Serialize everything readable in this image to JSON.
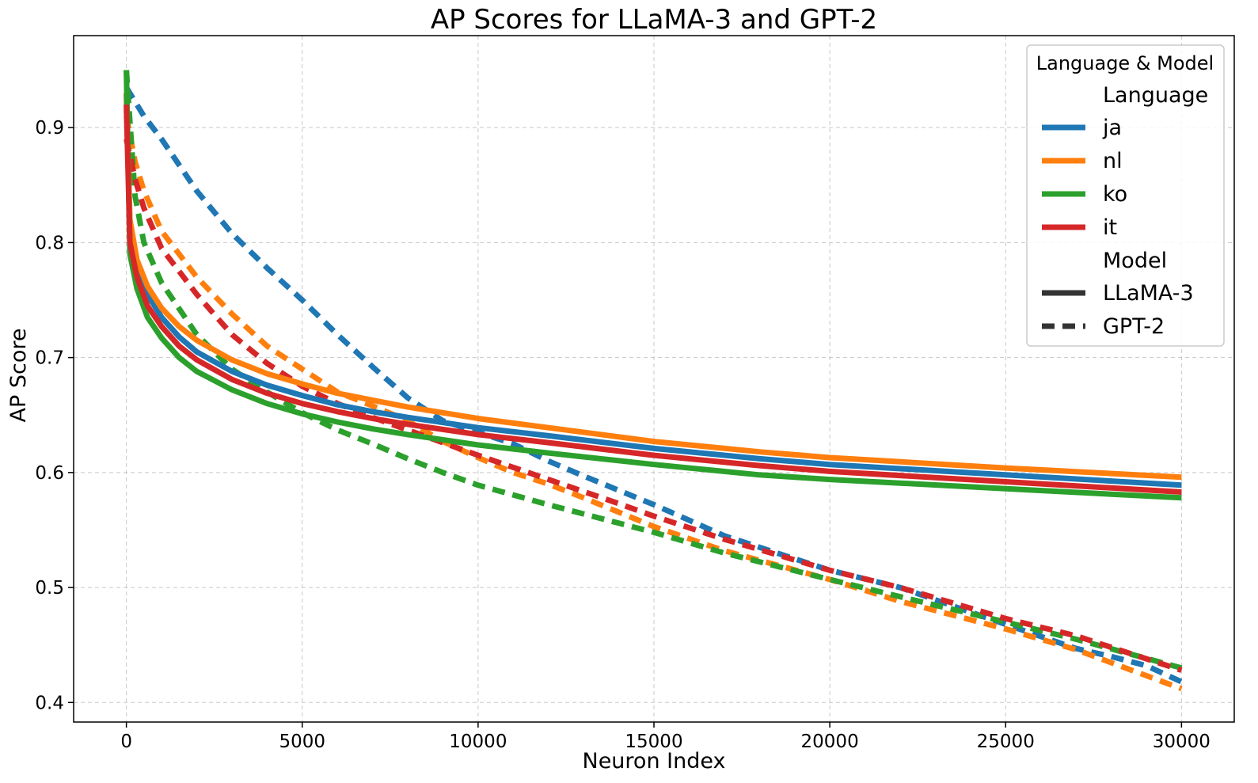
{
  "chart_data": {
    "type": "line",
    "title": "AP Scores for LLaMA-3 and GPT-2",
    "xlabel": "Neuron Index",
    "ylabel": "AP Score",
    "xlim": [
      -1500,
      31500
    ],
    "ylim": [
      0.383,
      0.98
    ],
    "xticks": [
      0,
      5000,
      10000,
      15000,
      20000,
      25000,
      30000
    ],
    "yticks": [
      0.4,
      0.5,
      0.6,
      0.7,
      0.8,
      0.9
    ],
    "xtick_labels": [
      "0",
      "5000",
      "10000",
      "15000",
      "20000",
      "25000",
      "30000"
    ],
    "ytick_labels": [
      "0.4",
      "0.5",
      "0.6",
      "0.7",
      "0.8",
      "0.9"
    ],
    "grid": true,
    "legend": {
      "placement": "top-right",
      "title": "Language & Model",
      "language_header": "Language",
      "model_header": "Model",
      "languages": [
        {
          "label": "ja",
          "color": "#1f77b4"
        },
        {
          "label": "nl",
          "color": "#ff7f0e"
        },
        {
          "label": "ko",
          "color": "#2ca02c"
        },
        {
          "label": "it",
          "color": "#d62728"
        }
      ],
      "models": [
        {
          "label": "LLaMA-3",
          "style": "solid"
        },
        {
          "label": "GPT-2",
          "style": "dashed"
        }
      ]
    },
    "series": [
      {
        "language": "ja",
        "model": "LLaMA-3",
        "color": "#1f77b4",
        "style": "solid",
        "x": [
          0,
          100,
          300,
          600,
          1000,
          1500,
          2000,
          3000,
          4000,
          5000,
          6000,
          7000,
          8000,
          10000,
          12000,
          15000,
          18000,
          20000,
          25000,
          30000
        ],
        "y": [
          0.93,
          0.81,
          0.78,
          0.755,
          0.735,
          0.718,
          0.705,
          0.688,
          0.676,
          0.667,
          0.659,
          0.653,
          0.648,
          0.639,
          0.632,
          0.621,
          0.612,
          0.607,
          0.598,
          0.589
        ]
      },
      {
        "language": "nl",
        "model": "LLaMA-3",
        "color": "#ff7f0e",
        "style": "solid",
        "x": [
          0,
          100,
          300,
          600,
          1000,
          1500,
          2000,
          3000,
          4000,
          5000,
          6000,
          7000,
          8000,
          10000,
          12000,
          15000,
          18000,
          20000,
          25000,
          30000
        ],
        "y": [
          0.93,
          0.82,
          0.785,
          0.762,
          0.743,
          0.727,
          0.715,
          0.698,
          0.686,
          0.677,
          0.669,
          0.663,
          0.657,
          0.647,
          0.639,
          0.627,
          0.618,
          0.613,
          0.604,
          0.596
        ]
      },
      {
        "language": "ko",
        "model": "LLaMA-3",
        "color": "#2ca02c",
        "style": "solid",
        "x": [
          0,
          100,
          300,
          600,
          1000,
          1500,
          2000,
          3000,
          4000,
          5000,
          6000,
          7000,
          8000,
          10000,
          12000,
          15000,
          18000,
          20000,
          25000,
          30000
        ],
        "y": [
          0.95,
          0.79,
          0.76,
          0.735,
          0.717,
          0.7,
          0.688,
          0.672,
          0.66,
          0.651,
          0.644,
          0.638,
          0.633,
          0.624,
          0.617,
          0.607,
          0.598,
          0.594,
          0.586,
          0.578
        ]
      },
      {
        "language": "it",
        "model": "LLaMA-3",
        "color": "#d62728",
        "style": "solid",
        "x": [
          0,
          100,
          300,
          600,
          1000,
          1500,
          2000,
          3000,
          4000,
          5000,
          6000,
          7000,
          8000,
          10000,
          12000,
          15000,
          18000,
          20000,
          25000,
          30000
        ],
        "y": [
          0.92,
          0.8,
          0.77,
          0.745,
          0.727,
          0.71,
          0.698,
          0.681,
          0.669,
          0.66,
          0.653,
          0.647,
          0.642,
          0.633,
          0.626,
          0.615,
          0.606,
          0.601,
          0.592,
          0.583
        ]
      },
      {
        "language": "ja",
        "model": "GPT-2",
        "color": "#1f77b4",
        "style": "dashed",
        "x": [
          0,
          500,
          1000,
          2000,
          3000,
          4000,
          5000,
          6000,
          7000,
          8000,
          9000,
          10000,
          11000,
          12000,
          13000,
          15000,
          17000,
          20000,
          22000,
          25000,
          27000,
          28000,
          29000,
          30000
        ],
        "y": [
          0.935,
          0.91,
          0.89,
          0.845,
          0.808,
          0.778,
          0.75,
          0.72,
          0.692,
          0.665,
          0.645,
          0.635,
          0.625,
          0.61,
          0.597,
          0.572,
          0.545,
          0.515,
          0.5,
          0.468,
          0.447,
          0.44,
          0.432,
          0.418
        ]
      },
      {
        "language": "nl",
        "model": "GPT-2",
        "color": "#ff7f0e",
        "style": "dashed",
        "x": [
          0,
          250,
          500,
          1000,
          2000,
          3000,
          4000,
          5000,
          6000,
          7000,
          8000,
          9000,
          10000,
          11000,
          12000,
          13000,
          15000,
          17000,
          20000,
          22000,
          25000,
          27000,
          30000
        ],
        "y": [
          0.91,
          0.87,
          0.845,
          0.81,
          0.77,
          0.738,
          0.71,
          0.69,
          0.67,
          0.658,
          0.645,
          0.627,
          0.613,
          0.6,
          0.59,
          0.578,
          0.553,
          0.532,
          0.507,
          0.488,
          0.464,
          0.446,
          0.412
        ]
      },
      {
        "language": "ko",
        "model": "GPT-2",
        "color": "#2ca02c",
        "style": "dashed",
        "x": [
          0,
          250,
          500,
          1000,
          2000,
          3000,
          4000,
          5000,
          6000,
          7000,
          8000,
          9000,
          10000,
          12000,
          14000,
          15000,
          17000,
          20000,
          22000,
          25000,
          27000,
          30000
        ],
        "y": [
          0.95,
          0.84,
          0.8,
          0.765,
          0.72,
          0.69,
          0.67,
          0.652,
          0.637,
          0.625,
          0.612,
          0.6,
          0.589,
          0.572,
          0.556,
          0.548,
          0.53,
          0.507,
          0.492,
          0.47,
          0.455,
          0.43
        ]
      },
      {
        "language": "it",
        "model": "GPT-2",
        "color": "#d62728",
        "style": "dashed",
        "x": [
          0,
          250,
          500,
          1000,
          2000,
          3000,
          4000,
          5000,
          6000,
          7000,
          8000,
          9000,
          10000,
          12000,
          14000,
          15000,
          17000,
          20000,
          22000,
          25000,
          27000,
          30000
        ],
        "y": [
          0.89,
          0.855,
          0.83,
          0.795,
          0.755,
          0.72,
          0.695,
          0.675,
          0.66,
          0.648,
          0.637,
          0.626,
          0.615,
          0.594,
          0.573,
          0.562,
          0.542,
          0.515,
          0.5,
          0.473,
          0.458,
          0.428
        ]
      }
    ]
  }
}
